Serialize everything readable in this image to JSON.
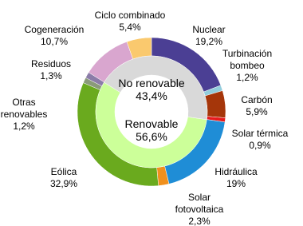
{
  "chart_data": {
    "type": "donut",
    "rings": [
      {
        "categories": [
          "Nuclear",
          "Turbinación bombeo",
          "Carbón",
          "Solar térmica",
          "Hidráulica",
          "Solar fotovoltaica",
          "Eólica",
          "Otras renovables",
          "Residuos",
          "Cogeneración",
          "Ciclo combinado"
        ],
        "values": [
          19.2,
          1.2,
          5.9,
          0.9,
          19,
          2.3,
          32.9,
          1.2,
          1.3,
          10.7,
          5.4
        ],
        "value_labels": [
          "19,2%",
          "1,2%",
          "5,9%",
          "0,9%",
          "19%",
          "2,3%",
          "32,9%",
          "1,2%",
          "1,3%",
          "10,7%",
          "5,4%"
        ],
        "colors": [
          "#4b3f94",
          "#92cddc",
          "#a5360a",
          "#e8191c",
          "#1f8dd6",
          "#f0901e",
          "#6aaa1e",
          "#8a9a7a",
          "#8b7ca8",
          "#d9a6cf",
          "#fac96e"
        ]
      },
      {
        "categories": [
          "Renovable",
          "No renovable"
        ],
        "values": [
          56.6,
          43.4
        ],
        "value_labels": [
          "56,6%",
          "43,4%"
        ],
        "colors": [
          "#ccff99",
          "#d9d9d9"
        ]
      }
    ]
  }
}
